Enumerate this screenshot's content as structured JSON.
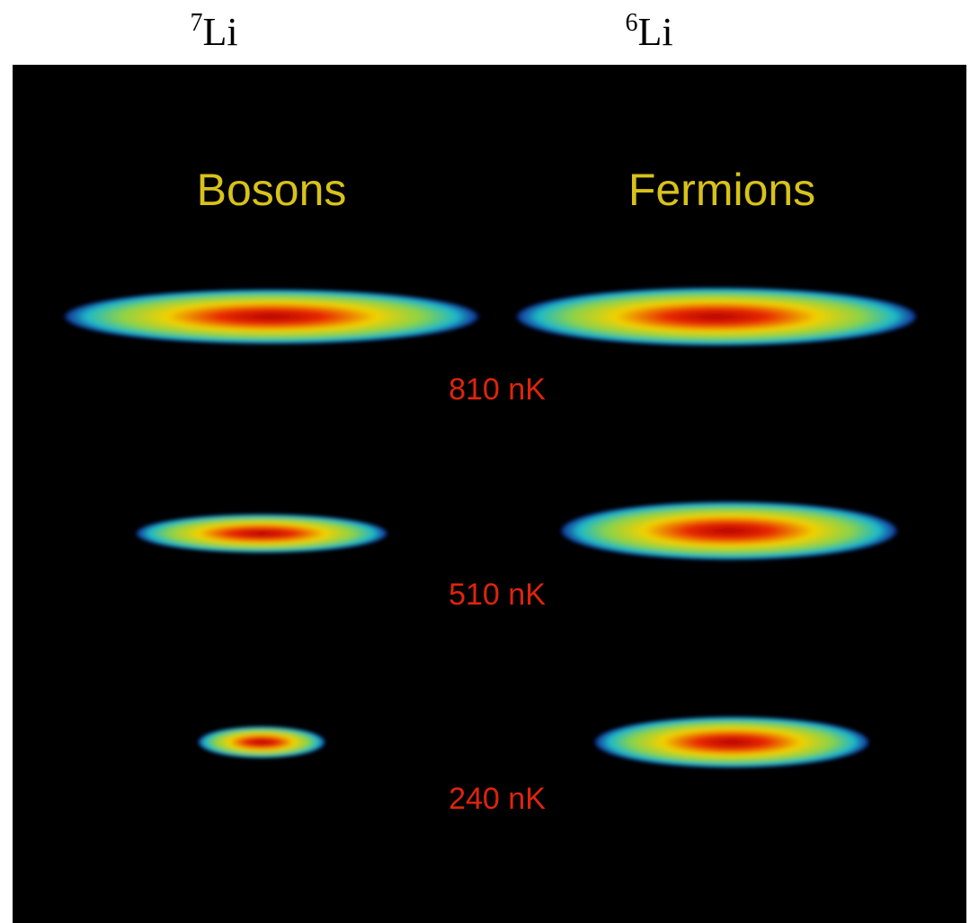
{
  "headers": [
    {
      "mass": "7",
      "symbol": "Li"
    },
    {
      "mass": "6",
      "symbol": "Li"
    }
  ],
  "columns": [
    "Bosons",
    "Fermions"
  ],
  "temperatures": [
    "810 nK",
    "510 nK",
    "240 nK"
  ]
}
